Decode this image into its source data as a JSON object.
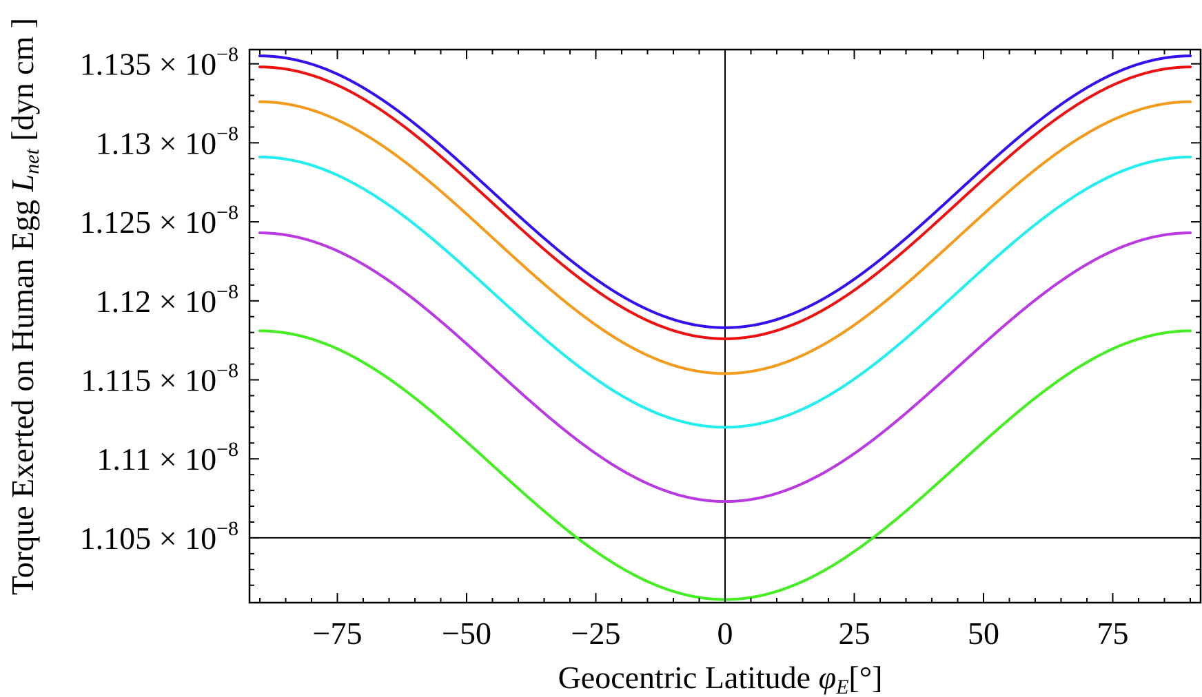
{
  "chart_data": {
    "type": "line",
    "title": "",
    "xlabel": {
      "main": "Geocentric Latitude ",
      "symbol": "φ",
      "subscript": "E",
      "unit": "[°]"
    },
    "ylabel": {
      "main": "Torque Exerted on Human Egg ",
      "symbol": "L",
      "subscript": "net",
      "unit_prefix": " [dyn cm ",
      "unit_suffix": "]"
    },
    "xlim": [
      -92,
      92
    ],
    "ylim": [
      1.1009,
      1.1359
    ],
    "x_ticks": [
      -75,
      -50,
      -25,
      0,
      25,
      50,
      75
    ],
    "x_tick_labels": [
      "−75",
      "−50",
      "−25",
      "0",
      "25",
      "50",
      "75"
    ],
    "y_ticks": [
      1.105,
      1.11,
      1.115,
      1.12,
      1.125,
      1.13,
      1.135
    ],
    "y_tick_labels": [
      {
        "mantissa": "1.105",
        "times": " × ",
        "base": "10",
        "exponent": "−8"
      },
      {
        "mantissa": "1.11",
        "times": " × ",
        "base": "10",
        "exponent": "−8"
      },
      {
        "mantissa": "1.115",
        "times": " × ",
        "base": "10",
        "exponent": "−8"
      },
      {
        "mantissa": "1.12",
        "times": " × ",
        "base": "10",
        "exponent": "−8"
      },
      {
        "mantissa": "1.125",
        "times": " × ",
        "base": "10",
        "exponent": "−8"
      },
      {
        "mantissa": "1.13",
        "times": " × ",
        "base": "10",
        "exponent": "−8"
      },
      {
        "mantissa": "1.135",
        "times": " × ",
        "base": "10",
        "exponent": "−8"
      }
    ],
    "y_scale_note": "values in units of 10^-8 dyn cm",
    "reference_lines": {
      "x": 0,
      "y": 1.105
    },
    "grid": false,
    "x": [
      -90,
      90
    ],
    "series": [
      {
        "name": "blue",
        "color": "#3311ee",
        "min": 1.1183,
        "max": 1.1355
      },
      {
        "name": "red",
        "color": "#ee1111",
        "min": 1.1176,
        "max": 1.1348
      },
      {
        "name": "orange",
        "color": "#f39b1d",
        "min": 1.1154,
        "max": 1.1326
      },
      {
        "name": "cyan",
        "color": "#22eeee",
        "min": 1.112,
        "max": 1.1291
      },
      {
        "name": "purple",
        "color": "#b83ae0",
        "min": 1.1073,
        "max": 1.1243
      },
      {
        "name": "green",
        "color": "#44ee22",
        "min": 1.1011,
        "max": 1.1181
      }
    ]
  }
}
